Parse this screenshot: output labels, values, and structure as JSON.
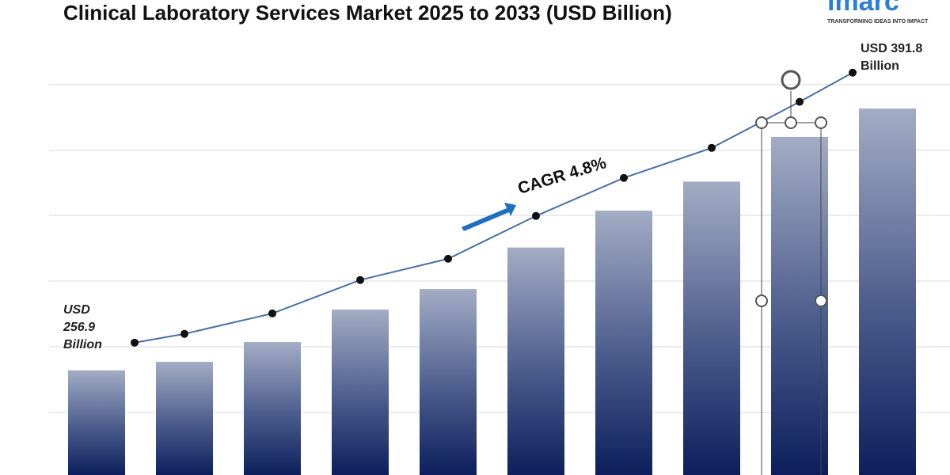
{
  "chart_data": {
    "type": "bar",
    "title": "Clinical Laboratory Services Market 2025 to 2033 (USD Billion)",
    "values": [
      256.9,
      261.3,
      271.5,
      288.2,
      298.8,
      320.2,
      339.2,
      354.2,
      377.2,
      391.8
    ],
    "value_labels": [
      "USD 256.9 Billion",
      null,
      null,
      null,
      null,
      null,
      null,
      null,
      null,
      "USD 391.8 Billion"
    ],
    "ylim": [
      203,
      420
    ],
    "y2lim": [
      190,
      400
    ],
    "line_color": "#4a6fa5",
    "annotation": "CAGR  4.8%",
    "logo": "imarc",
    "tagline": "TRANSFORMING IDEAS INTO IMPACT"
  }
}
